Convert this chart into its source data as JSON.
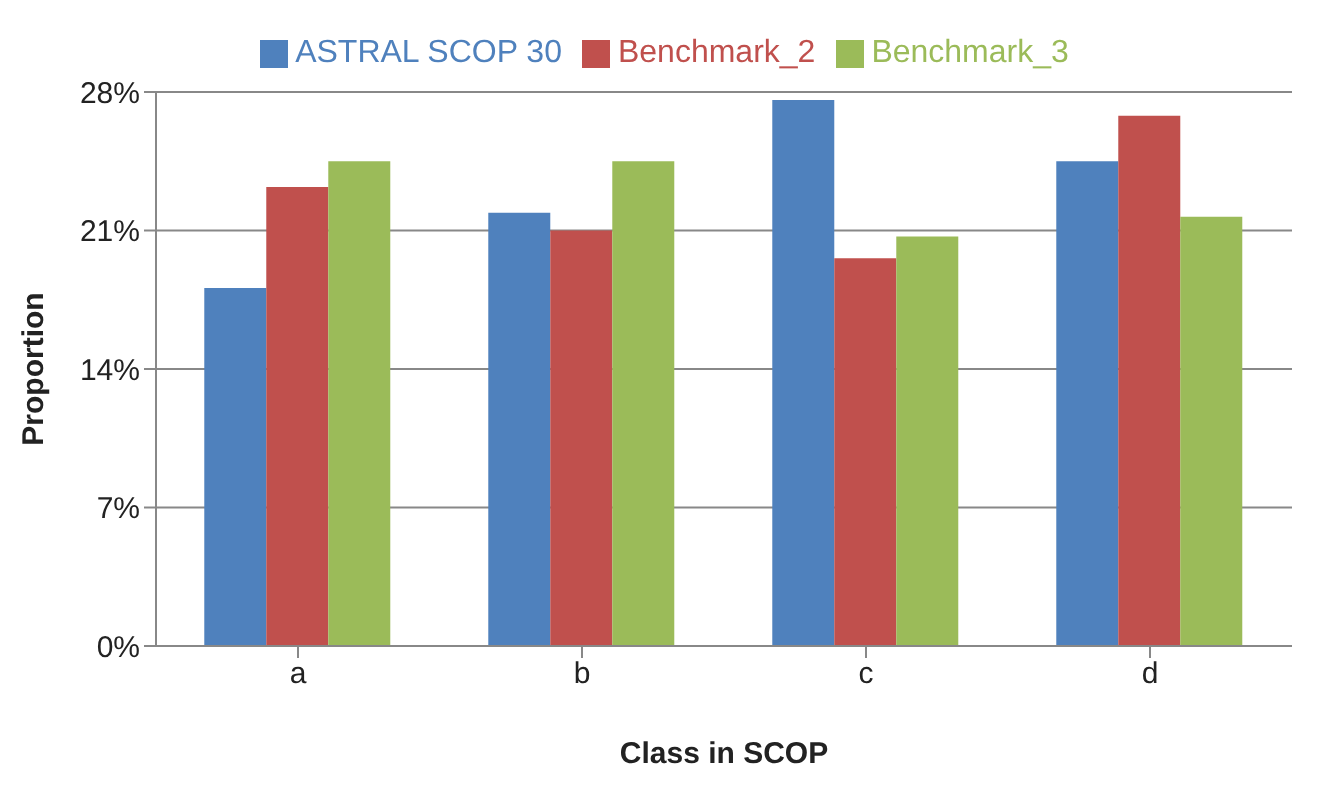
{
  "chart_data": {
    "type": "bar",
    "xlabel": "Class in SCOP",
    "ylabel": "Proportion",
    "categories": [
      "a",
      "b",
      "c",
      "d"
    ],
    "series": [
      {
        "name": "ASTRAL SCOP 30",
        "color": "#4f81bd",
        "values": [
          18.1,
          21.9,
          27.6,
          24.5
        ]
      },
      {
        "name": "Benchmark_2",
        "color": "#c0504d",
        "values": [
          23.2,
          21.0,
          19.6,
          26.8
        ]
      },
      {
        "name": "Benchmark_3",
        "color": "#9bbb59",
        "values": [
          24.5,
          24.5,
          20.7,
          21.7
        ]
      }
    ],
    "ylim": [
      0,
      28
    ],
    "yticks": [
      {
        "value": 0,
        "label": "0%"
      },
      {
        "value": 7,
        "label": "7%"
      },
      {
        "value": 14,
        "label": "14%"
      },
      {
        "value": 21,
        "label": "21%"
      },
      {
        "value": 28,
        "label": "28%"
      }
    ],
    "grid": "y",
    "legend": "top"
  }
}
